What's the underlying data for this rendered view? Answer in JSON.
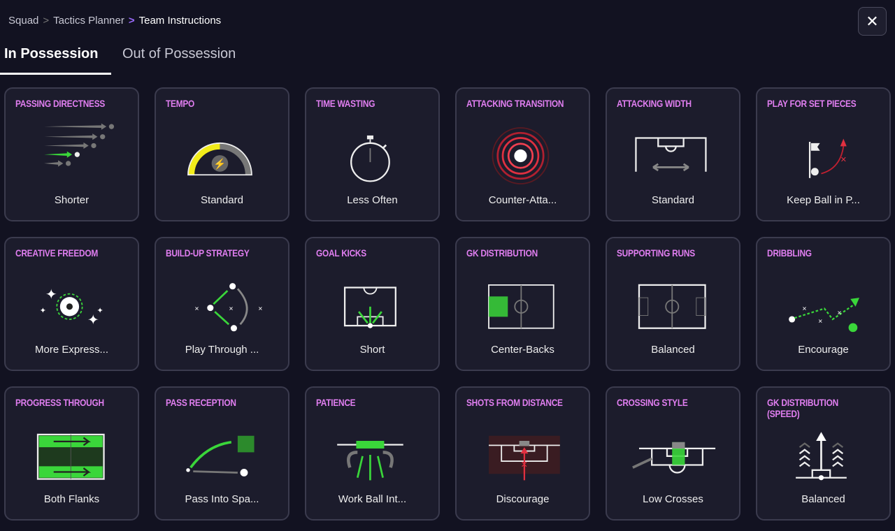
{
  "breadcrumb": [
    "Squad",
    "Tactics Planner",
    "Team Instructions"
  ],
  "close_icon": "close-icon",
  "tabs": [
    {
      "label": "In Possession",
      "active": true
    },
    {
      "label": "Out of Possession",
      "active": false
    }
  ],
  "colors": {
    "title": "#e07ef0",
    "accent_green": "#3ad63a",
    "tempo_yellow": "#f2ec1a",
    "danger_red": "#e03040"
  },
  "cards": [
    {
      "title": "PASSING DIRECTNESS",
      "value": "Shorter",
      "icon": "passing-arrows-icon"
    },
    {
      "title": "TEMPO",
      "value": "Standard",
      "icon": "tempo-gauge-icon",
      "level": 0.5
    },
    {
      "title": "TIME WASTING",
      "value": "Less Often",
      "icon": "stopwatch-icon"
    },
    {
      "title": "ATTACKING TRANSITION",
      "value": "Counter-Atta...",
      "icon": "target-rings-icon"
    },
    {
      "title": "ATTACKING WIDTH",
      "value": "Standard",
      "icon": "pitch-width-icon"
    },
    {
      "title": "PLAY FOR SET PIECES",
      "value": "Keep Ball in P...",
      "icon": "corner-flag-icon"
    },
    {
      "title": "CREATIVE FREEDOM",
      "value": "More Express...",
      "icon": "sparkle-ball-icon"
    },
    {
      "title": "BUILD-UP STRATEGY",
      "value": "Play Through ...",
      "icon": "build-up-icon"
    },
    {
      "title": "GOAL KICKS",
      "value": "Short",
      "icon": "goal-kick-icon"
    },
    {
      "title": "GK DISTRIBUTION",
      "value": "Center-Backs",
      "icon": "gk-distribution-icon"
    },
    {
      "title": "SUPPORTING RUNS",
      "value": "Balanced",
      "icon": "pitch-icon"
    },
    {
      "title": "DRIBBLING",
      "value": "Encourage",
      "icon": "dribbling-icon"
    },
    {
      "title": "PROGRESS THROUGH",
      "value": "Both Flanks",
      "icon": "flanks-icon"
    },
    {
      "title": "PASS RECEPTION",
      "value": "Pass Into Spa...",
      "icon": "pass-reception-icon"
    },
    {
      "title": "PATIENCE",
      "value": "Work Ball Int...",
      "icon": "patience-icon"
    },
    {
      "title": "SHOTS FROM DISTANCE",
      "value": "Discourage",
      "icon": "shots-icon"
    },
    {
      "title": "CROSSING STYLE",
      "value": "Low Crosses",
      "icon": "crossing-icon"
    },
    {
      "title": "GK DISTRIBUTION (SPEED)",
      "value": "Balanced",
      "icon": "gk-speed-icon"
    }
  ]
}
